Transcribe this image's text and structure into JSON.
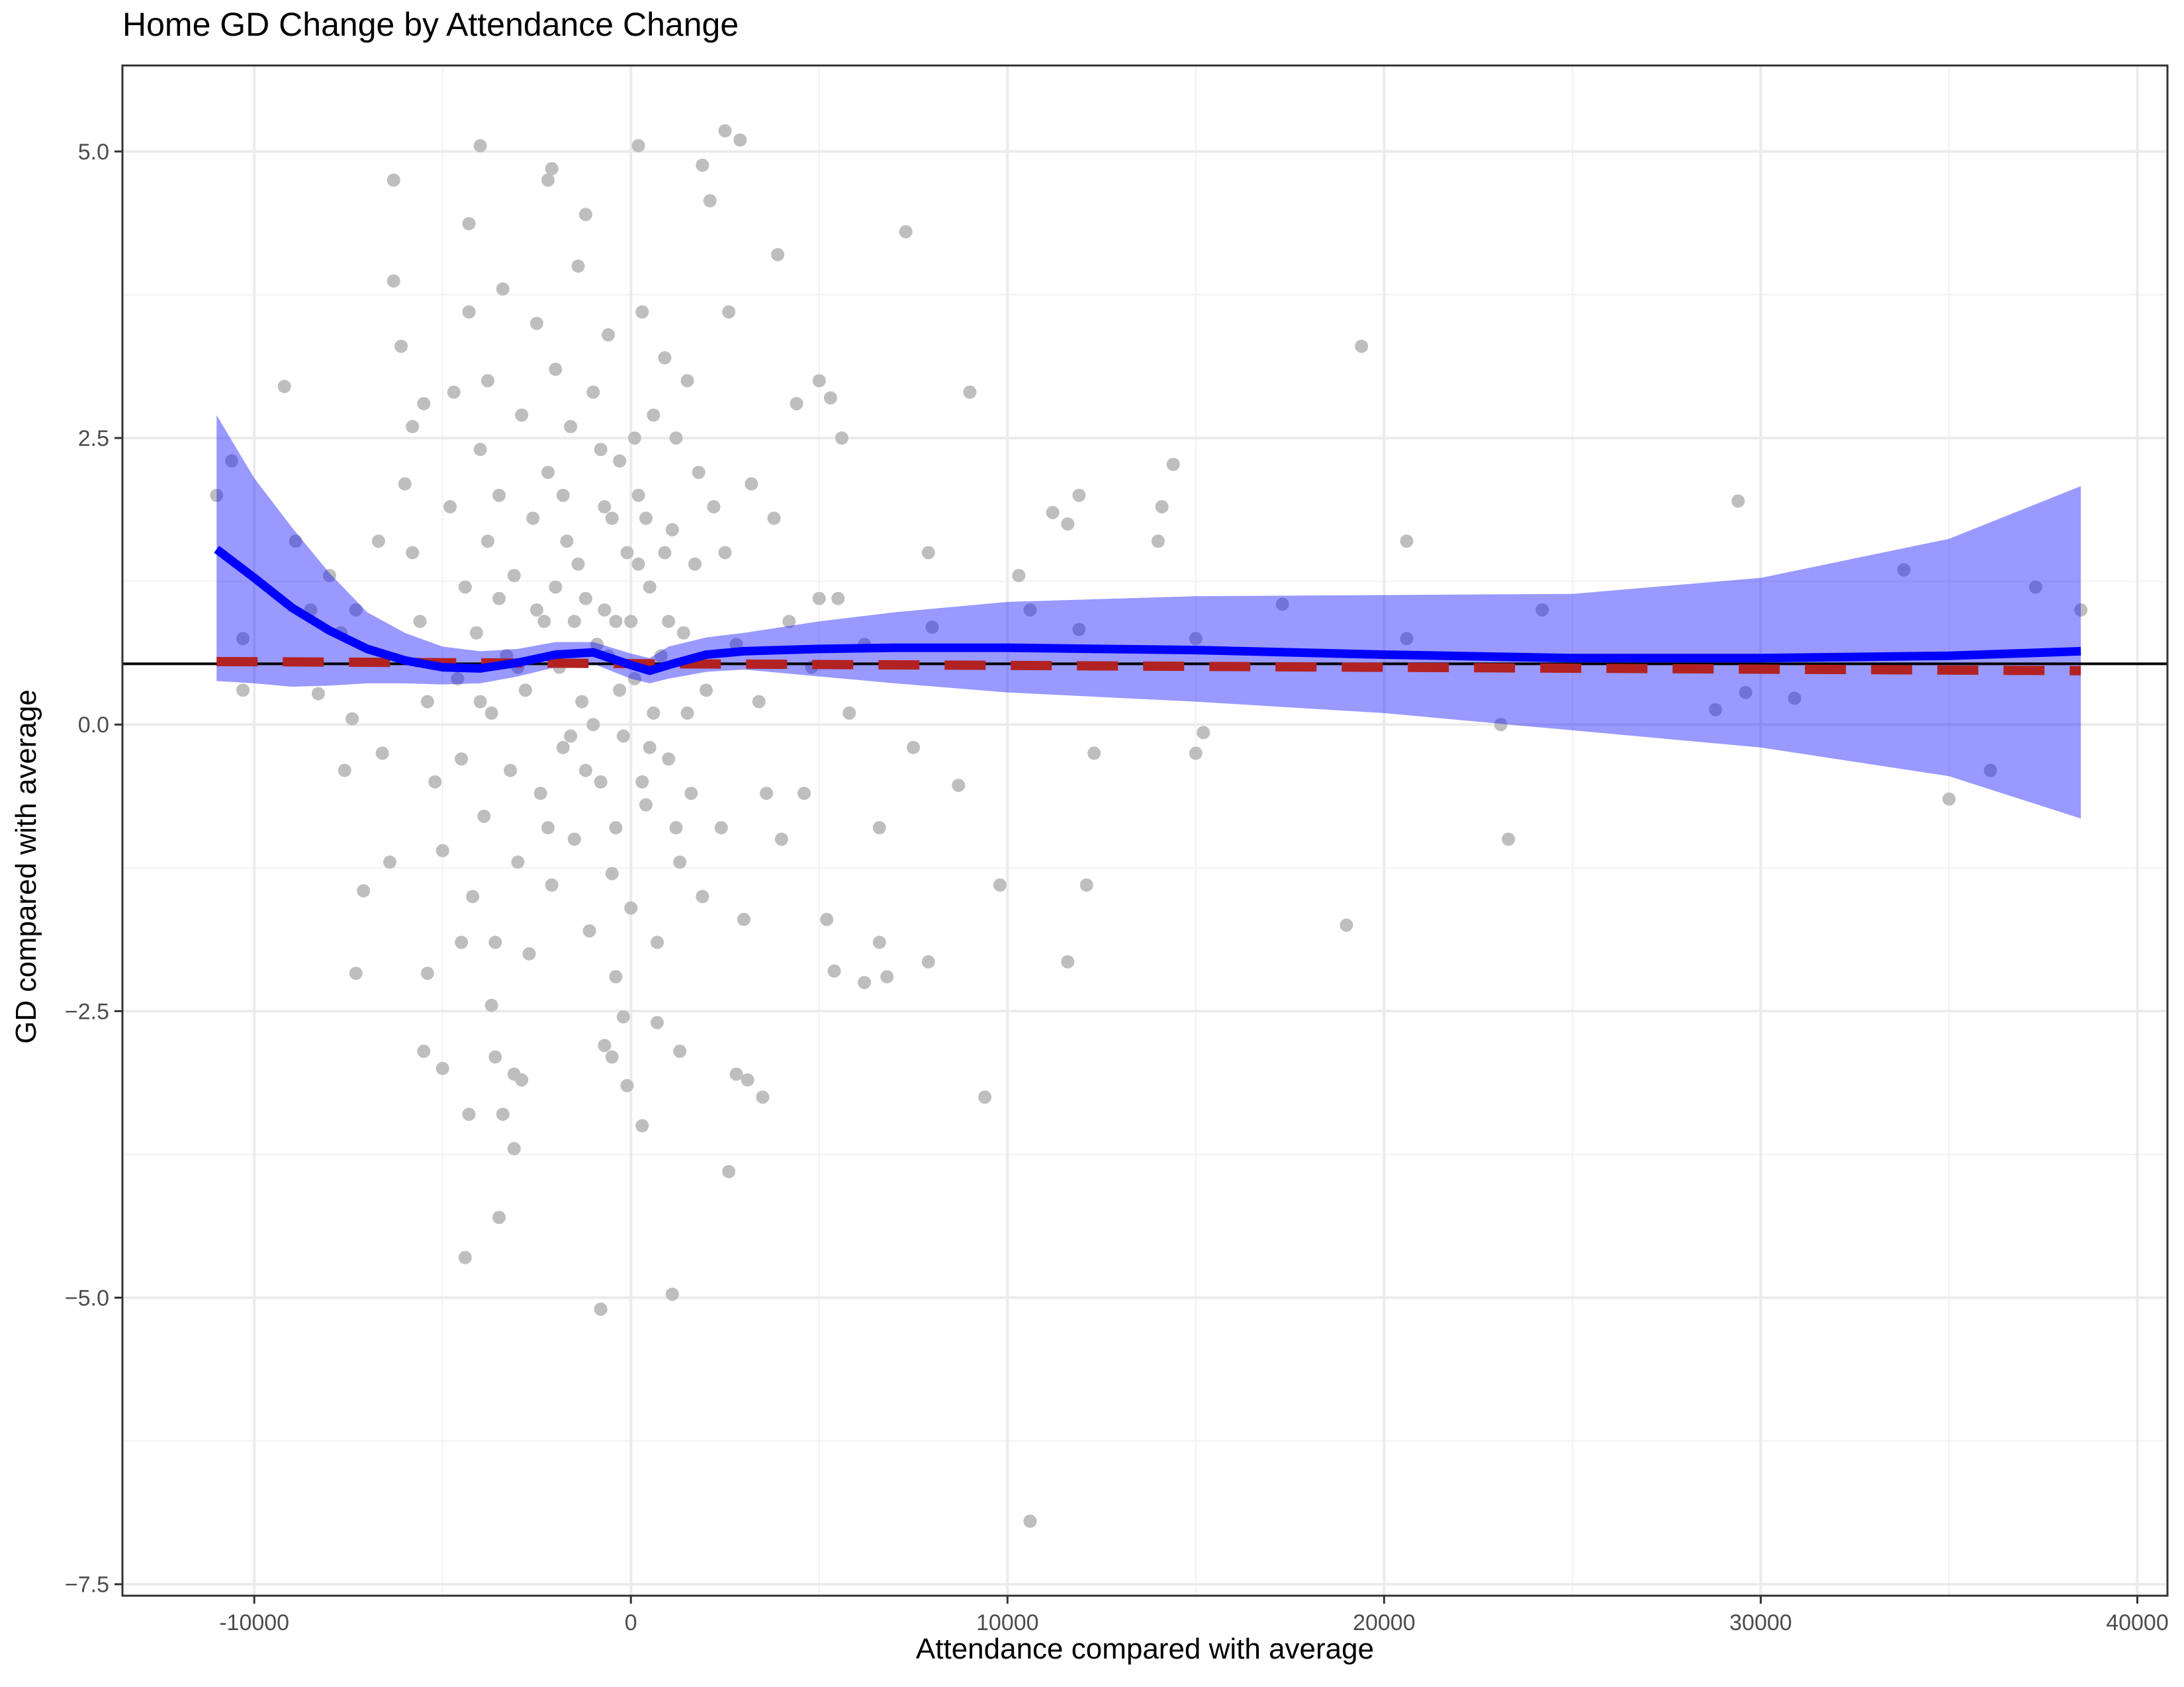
{
  "chart_data": {
    "type": "scatter",
    "title": "Home GD Change by Attendance Change",
    "xlabel": "Attendance compared with average",
    "ylabel": "GD compared with average",
    "xlim": [
      -13500,
      40800
    ],
    "ylim": [
      -7.6,
      5.75
    ],
    "xticks": [
      -10000,
      0,
      10000,
      20000,
      30000,
      40000
    ],
    "xtick_labels": [
      "-10000",
      "0",
      "10000",
      "20000",
      "30000",
      "40000"
    ],
    "yticks": [
      5.0,
      2.5,
      0.0,
      -2.5,
      -5.0,
      -7.5
    ],
    "ytick_labels": [
      "5.0",
      "2.5",
      "0.0",
      "−2.5",
      "−5.0",
      "−7.5"
    ],
    "grid": true,
    "colors": {
      "points": "#bebebe",
      "smooth": "#0000ff",
      "ribbon": "#9999ff",
      "lm": "#b22222",
      "hline": "#000000"
    },
    "hline": 0.53,
    "lm_line": {
      "x": [
        -11000,
        38500
      ],
      "y": [
        0.55,
        0.47
      ]
    },
    "smooth": {
      "x": [
        -11000,
        -10000,
        -9000,
        -8000,
        -7000,
        -6000,
        -5000,
        -4000,
        -3000,
        -2000,
        -1000,
        0,
        500,
        1000,
        2000,
        3000,
        5000,
        7000,
        10000,
        15000,
        20000,
        25000,
        30000,
        35000,
        38500
      ],
      "y": [
        1.53,
        1.28,
        1.02,
        0.82,
        0.66,
        0.56,
        0.5,
        0.49,
        0.54,
        0.61,
        0.63,
        0.52,
        0.47,
        0.52,
        0.61,
        0.64,
        0.66,
        0.67,
        0.67,
        0.65,
        0.61,
        0.58,
        0.58,
        0.6,
        0.64
      ],
      "upper": [
        2.7,
        2.15,
        1.72,
        1.32,
        0.98,
        0.8,
        0.68,
        0.64,
        0.66,
        0.72,
        0.72,
        0.62,
        0.58,
        0.68,
        0.76,
        0.8,
        0.9,
        0.98,
        1.07,
        1.12,
        1.13,
        1.14,
        1.28,
        1.62,
        2.08
      ],
      "lower": [
        0.38,
        0.36,
        0.33,
        0.34,
        0.36,
        0.36,
        0.35,
        0.36,
        0.42,
        0.5,
        0.53,
        0.4,
        0.36,
        0.4,
        0.46,
        0.48,
        0.42,
        0.36,
        0.28,
        0.2,
        0.1,
        -0.05,
        -0.2,
        -0.45,
        -0.82
      ]
    },
    "points": [
      [
        -11000,
        2.0
      ],
      [
        -10600,
        2.3
      ],
      [
        -10300,
        0.75
      ],
      [
        -10300,
        0.3
      ],
      [
        -9200,
        2.95
      ],
      [
        -8900,
        1.6
      ],
      [
        -8500,
        1.0
      ],
      [
        -8300,
        0.27
      ],
      [
        -8000,
        1.3
      ],
      [
        -7700,
        0.8
      ],
      [
        -7600,
        -0.4
      ],
      [
        -7400,
        0.05
      ],
      [
        -7300,
        1.0
      ],
      [
        -7100,
        -1.45
      ],
      [
        -7300,
        -2.17
      ],
      [
        -6700,
        1.6
      ],
      [
        -6600,
        -0.25
      ],
      [
        -6400,
        -1.2
      ],
      [
        -6300,
        4.75
      ],
      [
        -6300,
        3.87
      ],
      [
        -6100,
        3.3
      ],
      [
        -5800,
        2.6
      ],
      [
        -5500,
        2.8
      ],
      [
        -5500,
        -2.85
      ],
      [
        -5400,
        -2.17
      ],
      [
        -5000,
        -3.0
      ],
      [
        -4500,
        -1.9
      ],
      [
        -4300,
        4.37
      ],
      [
        -4400,
        -4.65
      ],
      [
        -4300,
        -3.4
      ],
      [
        -4000,
        5.05
      ],
      [
        -3800,
        3.0
      ],
      [
        -3700,
        -2.45
      ],
      [
        -3600,
        -2.9
      ],
      [
        -3500,
        -4.3
      ],
      [
        -3400,
        -3.4
      ],
      [
        -3100,
        -3.7
      ],
      [
        -3100,
        -3.05
      ],
      [
        -2900,
        -3.1
      ],
      [
        -2200,
        4.75
      ],
      [
        -2100,
        4.85
      ],
      [
        -1200,
        4.45
      ],
      [
        -800,
        -5.1
      ],
      [
        -700,
        -2.8
      ],
      [
        -500,
        -2.9
      ],
      [
        -400,
        -2.2
      ],
      [
        -200,
        -2.55
      ],
      [
        -100,
        -3.15
      ],
      [
        200,
        5.05
      ],
      [
        300,
        -3.5
      ],
      [
        700,
        -2.6
      ],
      [
        1100,
        -4.97
      ],
      [
        1300,
        -2.85
      ],
      [
        1900,
        4.88
      ],
      [
        2100,
        4.57
      ],
      [
        2500,
        5.18
      ],
      [
        2600,
        -3.9
      ],
      [
        2800,
        -3.05
      ],
      [
        2900,
        5.1
      ],
      [
        3100,
        -3.1
      ],
      [
        3500,
        -3.25
      ],
      [
        3900,
        4.1
      ],
      [
        5000,
        3.0
      ],
      [
        5300,
        2.85
      ],
      [
        5400,
        -2.15
      ],
      [
        5600,
        2.5
      ],
      [
        6200,
        -2.25
      ],
      [
        6600,
        -1.9
      ],
      [
        6800,
        -2.2
      ],
      [
        7300,
        4.3
      ],
      [
        7500,
        -0.2
      ],
      [
        7900,
        1.5
      ],
      [
        7900,
        -2.07
      ],
      [
        8000,
        0.85
      ],
      [
        8700,
        -0.53
      ],
      [
        9000,
        2.9
      ],
      [
        9400,
        -3.25
      ],
      [
        9800,
        -1.4
      ],
      [
        10300,
        1.3
      ],
      [
        10600,
        1.0
      ],
      [
        10600,
        -6.95
      ],
      [
        11200,
        1.85
      ],
      [
        11600,
        1.75
      ],
      [
        11600,
        -2.07
      ],
      [
        11900,
        0.83
      ],
      [
        11900,
        2.0
      ],
      [
        12100,
        -1.4
      ],
      [
        12300,
        -0.25
      ],
      [
        14000,
        1.6
      ],
      [
        14100,
        1.9
      ],
      [
        14400,
        2.27
      ],
      [
        15000,
        -0.25
      ],
      [
        15000,
        0.75
      ],
      [
        15200,
        -0.07
      ],
      [
        17300,
        1.05
      ],
      [
        19000,
        -1.75
      ],
      [
        19400,
        3.3
      ],
      [
        20600,
        1.6
      ],
      [
        20600,
        0.75
      ],
      [
        23100,
        0.0
      ],
      [
        23300,
        -1.0
      ],
      [
        24200,
        1.0
      ],
      [
        28800,
        0.13
      ],
      [
        29400,
        1.95
      ],
      [
        29600,
        0.28
      ],
      [
        30900,
        0.23
      ],
      [
        33800,
        1.35
      ],
      [
        35000,
        -0.65
      ],
      [
        36100,
        -0.4
      ],
      [
        37300,
        1.2
      ],
      [
        38500,
        1.0
      ],
      [
        -6000,
        2.1
      ],
      [
        -5800,
        1.5
      ],
      [
        -5600,
        0.9
      ],
      [
        -5400,
        0.2
      ],
      [
        -5200,
        -0.5
      ],
      [
        -5000,
        -1.1
      ],
      [
        -4800,
        1.9
      ],
      [
        -4700,
        2.9
      ],
      [
        -4600,
        0.4
      ],
      [
        -4500,
        -0.3
      ],
      [
        -4400,
        1.2
      ],
      [
        -4300,
        3.6
      ],
      [
        -4200,
        -1.5
      ],
      [
        -4100,
        0.8
      ],
      [
        -4000,
        2.4
      ],
      [
        -3900,
        -0.8
      ],
      [
        -3800,
        1.6
      ],
      [
        -3700,
        0.1
      ],
      [
        -3600,
        -1.9
      ],
      [
        -3500,
        2.0
      ],
      [
        -3400,
        3.8
      ],
      [
        -3300,
        0.6
      ],
      [
        -3200,
        -0.4
      ],
      [
        -3100,
        1.3
      ],
      [
        -3000,
        -1.2
      ],
      [
        -2900,
        2.7
      ],
      [
        -2800,
        0.3
      ],
      [
        -2700,
        -2.0
      ],
      [
        -2600,
        1.8
      ],
      [
        -2500,
        3.5
      ],
      [
        -2400,
        -0.6
      ],
      [
        -2300,
        0.9
      ],
      [
        -2200,
        2.2
      ],
      [
        -2100,
        -1.4
      ],
      [
        -2000,
        3.1
      ],
      [
        -1900,
        0.5
      ],
      [
        -1800,
        -0.2
      ],
      [
        -1700,
        1.6
      ],
      [
        -1600,
        2.6
      ],
      [
        -1500,
        -1.0
      ],
      [
        -1400,
        4.0
      ],
      [
        -1300,
        0.2
      ],
      [
        -1200,
        1.1
      ],
      [
        -1100,
        -1.8
      ],
      [
        -1000,
        2.9
      ],
      [
        -900,
        0.7
      ],
      [
        -800,
        -0.5
      ],
      [
        -700,
        1.9
      ],
      [
        -600,
        3.4
      ],
      [
        -500,
        -1.3
      ],
      [
        -400,
        0.9
      ],
      [
        -300,
        2.3
      ],
      [
        -200,
        -0.1
      ],
      [
        -100,
        1.5
      ],
      [
        0,
        -1.6
      ],
      [
        100,
        0.4
      ],
      [
        200,
        2.0
      ],
      [
        300,
        3.6
      ],
      [
        400,
        -0.7
      ],
      [
        500,
        1.2
      ],
      [
        600,
        2.7
      ],
      [
        700,
        -1.9
      ],
      [
        800,
        0.6
      ],
      [
        900,
        3.2
      ],
      [
        1000,
        -0.3
      ],
      [
        1100,
        1.7
      ],
      [
        1200,
        2.5
      ],
      [
        1300,
        -1.2
      ],
      [
        1400,
        0.8
      ],
      [
        1500,
        3.0
      ],
      [
        1600,
        -0.6
      ],
      [
        1700,
        1.4
      ],
      [
        1800,
        2.2
      ],
      [
        1900,
        -1.5
      ],
      [
        2000,
        0.3
      ],
      [
        2200,
        1.9
      ],
      [
        2400,
        -0.9
      ],
      [
        2600,
        3.6
      ],
      [
        2800,
        0.7
      ],
      [
        3000,
        -1.7
      ],
      [
        3200,
        2.1
      ],
      [
        3400,
        0.2
      ],
      [
        3600,
        -0.6
      ],
      [
        3800,
        1.8
      ],
      [
        4000,
        -1.0
      ],
      [
        4200,
        0.9
      ],
      [
        4400,
        2.8
      ],
      [
        4600,
        -0.6
      ],
      [
        4800,
        0.5
      ],
      [
        5000,
        1.1
      ],
      [
        5200,
        -1.7
      ],
      [
        5500,
        1.1
      ],
      [
        5800,
        0.1
      ],
      [
        6200,
        0.7
      ],
      [
        6600,
        -0.9
      ],
      [
        -2000,
        1.2
      ],
      [
        -1500,
        0.9
      ],
      [
        -1000,
        0.0
      ],
      [
        -500,
        1.8
      ],
      [
        0,
        0.9
      ],
      [
        500,
        -0.2
      ],
      [
        1000,
        0.9
      ],
      [
        -1800,
        2.0
      ],
      [
        -1200,
        -0.4
      ],
      [
        -600,
        0.6
      ],
      [
        200,
        1.4
      ],
      [
        600,
        0.1
      ],
      [
        -2500,
        1.0
      ],
      [
        -3000,
        0.5
      ],
      [
        -400,
        -0.9
      ],
      [
        300,
        -0.5
      ],
      [
        900,
        1.5
      ],
      [
        -1400,
        1.4
      ],
      [
        -700,
        1.0
      ],
      [
        100,
        2.5
      ],
      [
        -2200,
        -0.9
      ],
      [
        1500,
        0.1
      ],
      [
        2500,
        1.5
      ],
      [
        -3500,
        1.1
      ],
      [
        -4000,
        0.2
      ],
      [
        -800,
        2.4
      ],
      [
        400,
        1.8
      ],
      [
        1200,
        -0.9
      ],
      [
        -1600,
        -0.1
      ],
      [
        -300,
        0.3
      ]
    ]
  }
}
